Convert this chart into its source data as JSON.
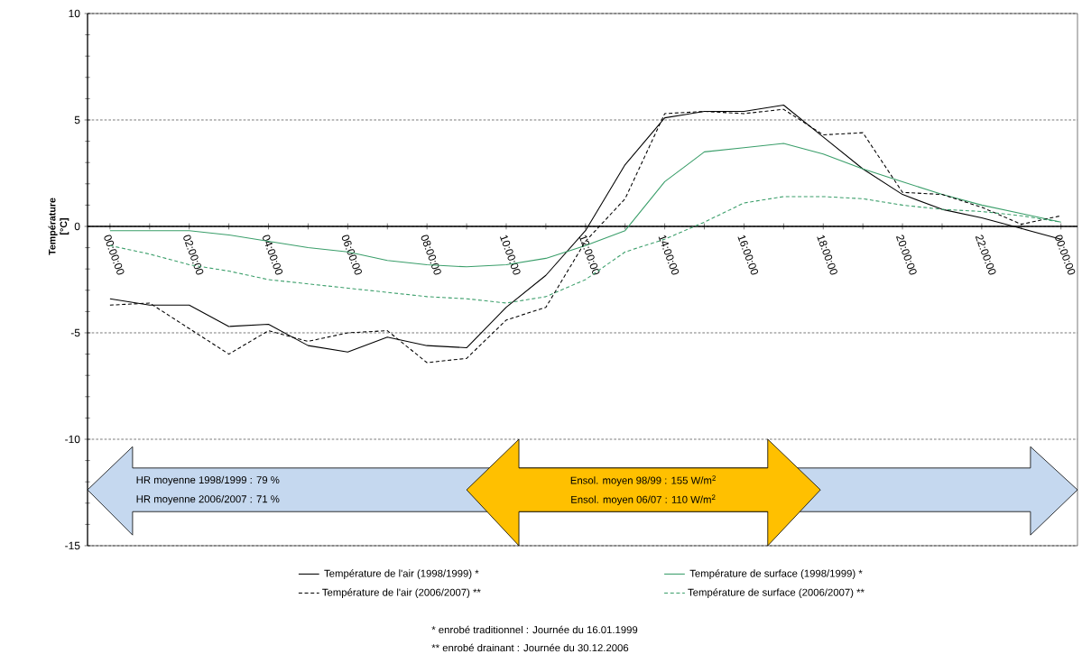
{
  "chart_data": {
    "type": "line",
    "ylabel": "Température [°C]",
    "x": [
      "1999-01-16T00:00",
      "1999-01-16T01:00",
      "1999-01-16T02:00",
      "1999-01-16T03:00",
      "1999-01-16T04:00",
      "1999-01-16T05:00",
      "1999-01-16T06:00",
      "1999-01-16T07:00",
      "1999-01-16T08:00",
      "1999-01-16T09:00",
      "1999-01-16T10:00",
      "1999-01-16T11:00",
      "1999-01-16T12:00",
      "1999-01-16T13:00",
      "1999-01-16T14:00",
      "1999-01-16T15:00",
      "1999-01-16T16:00",
      "1999-01-16T17:00",
      "1999-01-16T18:00",
      "1999-01-16T19:00",
      "1999-01-16T20:00",
      "1999-01-16T21:00",
      "1999-01-16T22:00",
      "1999-01-16T23:00",
      "1999-01-17T00:00"
    ],
    "series": [
      {
        "name": "Température de l'air (1998/1999) *",
        "color": "#000000",
        "line_style": "solid",
        "values": [
          -3.4,
          -3.7,
          -3.7,
          -4.7,
          -4.6,
          -5.6,
          -5.9,
          -5.2,
          -5.6,
          -5.7,
          -3.8,
          -2.3,
          -0.2,
          2.9,
          5.1,
          5.4,
          5.4,
          5.7,
          4.2,
          2.7,
          1.5,
          0.8,
          0.4,
          -0.1,
          -0.6
        ]
      },
      {
        "name": "Température de surface (1998/1999) *",
        "color": "#3a9e6a",
        "line_style": "solid",
        "values": [
          -0.2,
          -0.2,
          -0.2,
          -0.4,
          -0.7,
          -1.0,
          -1.2,
          -1.6,
          -1.8,
          -1.9,
          -1.8,
          -1.5,
          -0.9,
          -0.2,
          2.1,
          3.5,
          3.7,
          3.9,
          3.4,
          2.7,
          2.1,
          1.5,
          1.0,
          0.6,
          0.2
        ]
      },
      {
        "name": "Température de l'air (2006/2007) **",
        "color": "#000000",
        "line_style": "dashed",
        "values": [
          -3.7,
          -3.6,
          -4.8,
          -6.0,
          -4.9,
          -5.4,
          -5.0,
          -4.9,
          -6.4,
          -6.2,
          -4.4,
          -3.8,
          -0.7,
          1.3,
          5.3,
          5.4,
          5.3,
          5.5,
          4.3,
          4.4,
          1.6,
          1.5,
          0.9,
          0.1,
          0.5
        ]
      },
      {
        "name": "Température de surface (2006/2007) **",
        "color": "#3a9e6a",
        "line_style": "dashed",
        "values": [
          -0.9,
          -1.3,
          -1.8,
          -2.1,
          -2.5,
          -2.7,
          -2.9,
          -3.1,
          -3.3,
          -3.4,
          -3.6,
          -3.3,
          -2.5,
          -1.2,
          -0.6,
          0.2,
          1.1,
          1.4,
          1.4,
          1.3,
          1.0,
          0.8,
          0.7,
          0.5,
          0.2
        ]
      }
    ],
    "xlim": [
      "1999-01-15T23:26",
      "1999-01-17T00:25"
    ],
    "xticks": [
      {
        "value": "1999-01-16T00:00",
        "label": "00:00:00"
      },
      {
        "value": "1999-01-16T01:00",
        "label": null
      },
      {
        "value": "1999-01-16T02:00",
        "label": "02:00:00"
      },
      {
        "value": "1999-01-16T03:00",
        "label": null
      },
      {
        "value": "1999-01-16T04:00",
        "label": "04:00:00"
      },
      {
        "value": "1999-01-16T05:00",
        "label": null
      },
      {
        "value": "1999-01-16T06:00",
        "label": "06:00:00"
      },
      {
        "value": "1999-01-16T07:00",
        "label": null
      },
      {
        "value": "1999-01-16T08:00",
        "label": "08:00:00"
      },
      {
        "value": "1999-01-16T09:00",
        "label": null
      },
      {
        "value": "1999-01-16T10:00",
        "label": "10:00:00"
      },
      {
        "value": "1999-01-16T11:00",
        "label": null
      },
      {
        "value": "1999-01-16T12:00",
        "label": "12:00:00"
      },
      {
        "value": "1999-01-16T13:00",
        "label": null
      },
      {
        "value": "1999-01-16T14:00",
        "label": "14:00:00"
      },
      {
        "value": "1999-01-16T15:00",
        "label": null
      },
      {
        "value": "1999-01-16T16:00",
        "label": "16:00:00"
      },
      {
        "value": "1999-01-16T17:00",
        "label": null
      },
      {
        "value": "1999-01-16T18:00",
        "label": "18:00:00"
      },
      {
        "value": "1999-01-16T19:00",
        "label": null
      },
      {
        "value": "1999-01-16T20:00",
        "label": "20:00:00"
      },
      {
        "value": "1999-01-16T21:00",
        "label": null
      },
      {
        "value": "1999-01-16T22:00",
        "label": "22:00:00"
      },
      {
        "value": "1999-01-16T23:00",
        "label": null
      },
      {
        "value": "1999-01-17T00:00",
        "label": "00:00:00"
      }
    ],
    "ylim": [
      -15,
      10
    ],
    "yticks": [
      -15,
      -10,
      -5,
      0,
      5,
      10
    ],
    "grid": "y",
    "legend": "bottom",
    "marker": "none",
    "annotations": [
      "HR moyenne 1998/1999 : 79 %",
      "HR moyenne 2006/2007 : 71 %",
      "Ensol. moyen 98/99 : 155 W/m$^{2}$",
      "Ensol. moyen 06/07 : 110 W/m$^{2}$",
      "* enrobé traditionnel : Journée du 16.01.1999",
      "** enrobé drainant : Journée du 30.12.2006"
    ]
  }
}
